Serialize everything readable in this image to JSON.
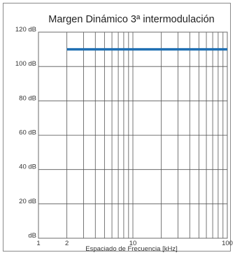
{
  "chart_data": {
    "type": "line",
    "title": "Margen Dinámico 3ª intermodulación",
    "xlabel": "Espaciado de Frecuencia [kHz]",
    "ylabel": "",
    "x_scale": "log",
    "xlim": [
      1,
      100
    ],
    "ylim": [
      0,
      120
    ],
    "x_ticks": [
      1,
      2,
      10,
      100
    ],
    "x_tick_labels": [
      "1",
      "2",
      "10",
      "100"
    ],
    "y_ticks": [
      0,
      20,
      40,
      60,
      80,
      100,
      120
    ],
    "y_tick_labels": [
      "dB",
      "20 dB",
      "40 dB",
      "60 dB",
      "80 dB",
      "100 dB",
      "120 dB"
    ],
    "grid": true,
    "series": [
      {
        "x": [
          2,
          100
        ],
        "y": [
          110,
          110
        ],
        "color": "#1f6fb2"
      }
    ]
  }
}
